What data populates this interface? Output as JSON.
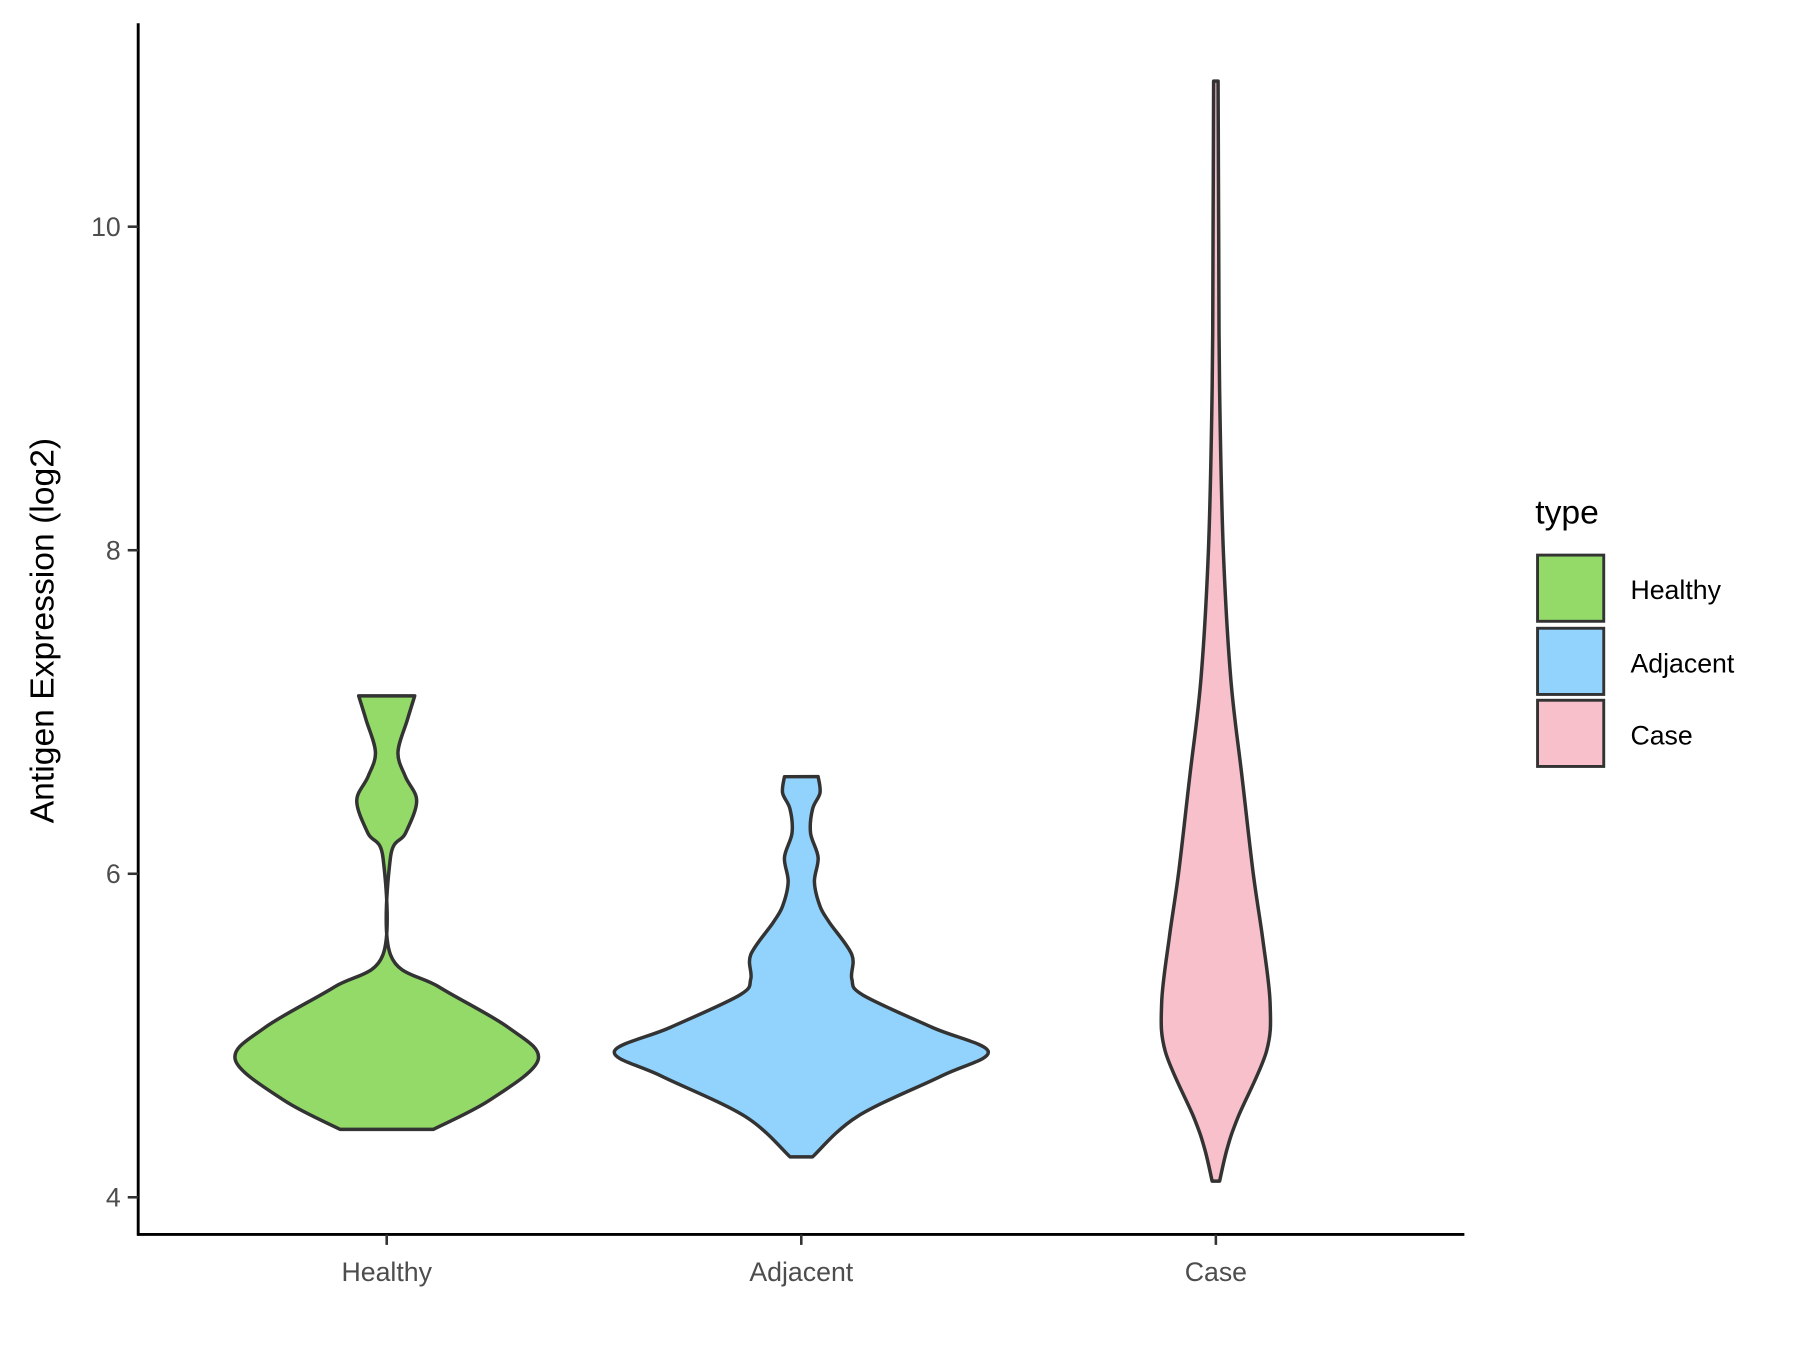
{
  "chart_data": {
    "type": "violin",
    "title": "",
    "xlabel": "",
    "ylabel": "Antigen Expression (log2)",
    "ylim": [
      3.75,
      11.5
    ],
    "yticks": [
      4,
      6,
      8,
      10
    ],
    "yticklabels": [
      "4",
      "6",
      "8",
      "10"
    ],
    "categories": [
      "Healthy",
      "Adjacent",
      "Case"
    ],
    "grid": false,
    "legend": {
      "title": "type",
      "position": "right",
      "entries": [
        "Healthy",
        "Adjacent",
        "Case"
      ]
    },
    "series": [
      {
        "name": "Healthy",
        "color": "#93DA69",
        "min": 4.42,
        "max": 7.1,
        "density_profile": [
          [
            4.42,
            0.25
          ],
          [
            4.6,
            0.55
          ],
          [
            4.85,
            0.81
          ],
          [
            5.05,
            0.65
          ],
          [
            5.3,
            0.28
          ],
          [
            5.5,
            0.02
          ],
          [
            6.1,
            0.02
          ],
          [
            6.25,
            0.1
          ],
          [
            6.45,
            0.16
          ],
          [
            6.6,
            0.1
          ],
          [
            6.75,
            0.06
          ],
          [
            6.95,
            0.11
          ],
          [
            7.1,
            0.15
          ]
        ]
      },
      {
        "name": "Adjacent",
        "color": "#92D3FD",
        "min": 4.25,
        "max": 6.6,
        "density_profile": [
          [
            4.25,
            0.06
          ],
          [
            4.5,
            0.3
          ],
          [
            4.75,
            0.75
          ],
          [
            4.9,
            1.0
          ],
          [
            5.05,
            0.7
          ],
          [
            5.25,
            0.33
          ],
          [
            5.35,
            0.27
          ],
          [
            5.5,
            0.27
          ],
          [
            5.7,
            0.15
          ],
          [
            5.8,
            0.1
          ],
          [
            5.95,
            0.07
          ],
          [
            6.1,
            0.09
          ],
          [
            6.25,
            0.05
          ],
          [
            6.4,
            0.06
          ],
          [
            6.5,
            0.1
          ],
          [
            6.6,
            0.09
          ]
        ]
      },
      {
        "name": "Case",
        "color": "#F7C0CB",
        "min": 4.1,
        "max": 10.9,
        "density_profile": [
          [
            4.1,
            0.02
          ],
          [
            4.3,
            0.06
          ],
          [
            4.5,
            0.12
          ],
          [
            4.9,
            0.27
          ],
          [
            5.2,
            0.29
          ],
          [
            5.6,
            0.25
          ],
          [
            6.0,
            0.2
          ],
          [
            6.6,
            0.14
          ],
          [
            7.2,
            0.08
          ],
          [
            8.0,
            0.04
          ],
          [
            9.0,
            0.02
          ],
          [
            10.0,
            0.015
          ],
          [
            10.9,
            0.012
          ]
        ]
      }
    ]
  }
}
